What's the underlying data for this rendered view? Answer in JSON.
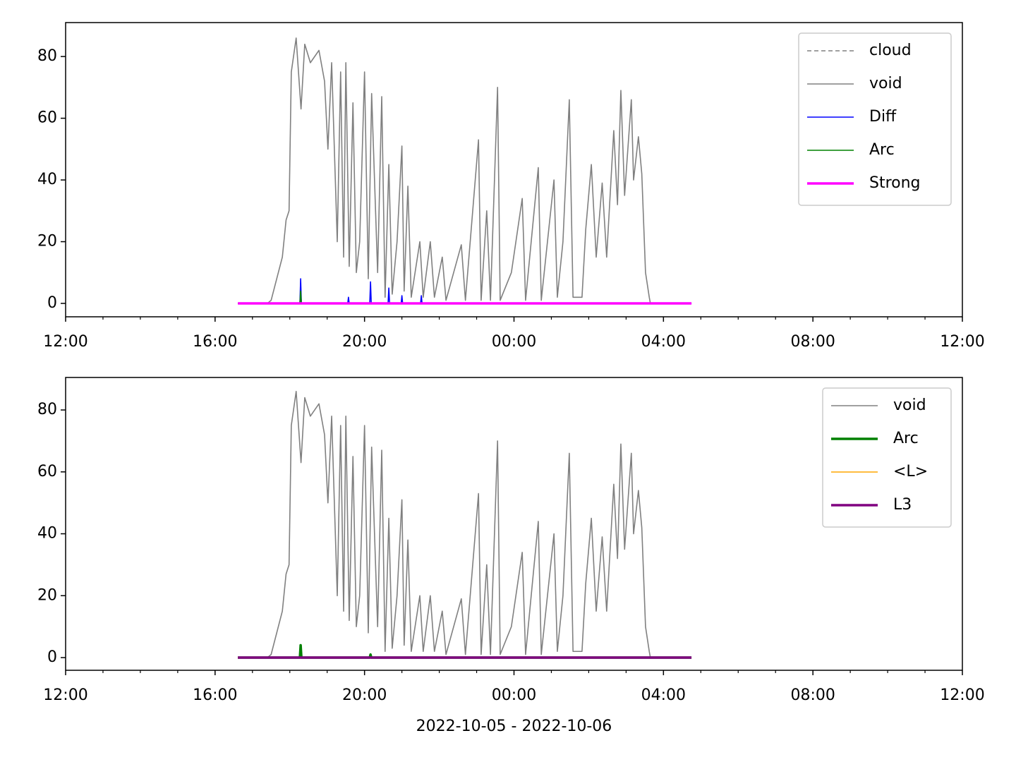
{
  "chart_data": [
    {
      "type": "line",
      "xlim": [
        0,
        24
      ],
      "xticks": [
        {
          "value": 0,
          "label": "12:00"
        },
        {
          "value": 4,
          "label": "16:00"
        },
        {
          "value": 8,
          "label": "20:00"
        },
        {
          "value": 12,
          "label": "00:00"
        },
        {
          "value": 16,
          "label": "04:00"
        },
        {
          "value": 20,
          "label": "08:00"
        },
        {
          "value": 24,
          "label": "12:00"
        }
      ],
      "xticks_minor": [
        1,
        2,
        3,
        5,
        6,
        7,
        9,
        10,
        11,
        13,
        14,
        15,
        17,
        18,
        19,
        21,
        22,
        23
      ],
      "ylim": [
        -4.34,
        91
      ],
      "yticks": [
        0,
        20,
        40,
        60,
        80
      ],
      "legend": "upper right",
      "series": [
        {
          "name": "cloud",
          "color": "#808080",
          "linestyle": "dashed",
          "weight": "thin",
          "x": [],
          "values": []
        },
        {
          "name": "void",
          "color": "#808080",
          "linestyle": "solid",
          "weight": "thin",
          "x": [
            4.61,
            5.4,
            5.5,
            5.8,
            5.9,
            5.98,
            6.04,
            6.17,
            6.3,
            6.4,
            6.55,
            6.78,
            6.93,
            7.02,
            7.12,
            7.27,
            7.36,
            7.44,
            7.5,
            7.59,
            7.69,
            7.78,
            7.87,
            8.0,
            8.1,
            8.19,
            8.35,
            8.46,
            8.55,
            8.65,
            8.74,
            8.87,
            9.0,
            9.06,
            9.16,
            9.25,
            9.48,
            9.57,
            9.76,
            9.87,
            10.08,
            10.18,
            10.59,
            10.7,
            11.05,
            11.12,
            11.27,
            11.37,
            11.56,
            11.63,
            11.93,
            12.22,
            12.31,
            12.65,
            12.73,
            13.07,
            13.16,
            13.31,
            13.48,
            13.58,
            13.82,
            13.92,
            14.07,
            14.2,
            14.36,
            14.48,
            14.67,
            14.77,
            14.86,
            14.96,
            15.14,
            15.2,
            15.33,
            15.42,
            15.52,
            15.62,
            15.65
          ],
          "values": [
            0,
            0,
            1,
            15,
            27,
            30,
            75,
            86,
            63,
            84,
            78,
            82,
            72,
            50,
            78,
            20,
            75,
            15,
            78,
            12,
            65,
            10,
            20,
            75,
            8,
            68,
            10,
            67,
            2,
            45,
            3,
            20,
            51,
            4,
            38,
            2,
            20,
            2,
            20,
            2,
            15,
            1,
            19,
            1,
            53,
            1,
            30,
            1,
            70,
            1,
            10,
            34,
            1,
            44,
            1,
            40,
            2,
            20,
            66,
            2,
            2,
            24,
            45,
            15,
            39,
            15,
            56,
            32,
            69,
            35,
            66,
            40,
            54,
            42,
            10,
            2,
            0
          ]
        },
        {
          "name": "Diff",
          "color": "#0000ff",
          "linestyle": "solid",
          "weight": "thin",
          "x": [
            4.61,
            6.27,
            6.29,
            6.31,
            7.55,
            7.57,
            7.59,
            8.14,
            8.16,
            8.18,
            8.63,
            8.65,
            8.67,
            8.98,
            9.0,
            9.02,
            9.5,
            9.52,
            9.54,
            16.75
          ],
          "values": [
            0,
            0,
            8,
            0,
            0,
            2,
            0,
            0,
            7,
            0,
            0,
            5,
            0,
            0,
            2.5,
            0,
            0,
            2.5,
            0,
            0
          ]
        },
        {
          "name": "Arc",
          "color": "#008000",
          "linestyle": "solid",
          "weight": "thin",
          "x": [
            4.61,
            6.27,
            6.29,
            6.31,
            16.75
          ],
          "values": [
            0,
            0,
            4,
            0,
            0
          ]
        },
        {
          "name": "Strong",
          "color": "#ff00ff",
          "linestyle": "solid",
          "weight": "thick",
          "x": [
            4.61,
            16.75
          ],
          "values": [
            0,
            0
          ]
        }
      ]
    },
    {
      "type": "line",
      "xlabel": "2022-10-05 - 2022-10-06",
      "xlim": [
        0,
        24
      ],
      "xticks": [
        {
          "value": 0,
          "label": "12:00"
        },
        {
          "value": 4,
          "label": "16:00"
        },
        {
          "value": 8,
          "label": "20:00"
        },
        {
          "value": 12,
          "label": "00:00"
        },
        {
          "value": 16,
          "label": "04:00"
        },
        {
          "value": 20,
          "label": "08:00"
        },
        {
          "value": 24,
          "label": "12:00"
        }
      ],
      "xticks_minor": [
        1,
        2,
        3,
        5,
        6,
        7,
        9,
        10,
        11,
        13,
        14,
        15,
        17,
        18,
        19,
        21,
        22,
        23
      ],
      "ylim": [
        -4.1,
        90.5
      ],
      "yticks": [
        0,
        20,
        40,
        60,
        80
      ],
      "legend": "upper right",
      "series": [
        {
          "name": "void",
          "color": "#808080",
          "linestyle": "solid",
          "weight": "thin",
          "x": [
            4.61,
            5.4,
            5.5,
            5.8,
            5.9,
            5.98,
            6.04,
            6.17,
            6.3,
            6.4,
            6.55,
            6.78,
            6.93,
            7.02,
            7.12,
            7.27,
            7.36,
            7.44,
            7.5,
            7.59,
            7.69,
            7.78,
            7.87,
            8.0,
            8.1,
            8.19,
            8.35,
            8.46,
            8.55,
            8.65,
            8.74,
            8.87,
            9.0,
            9.06,
            9.16,
            9.25,
            9.48,
            9.57,
            9.76,
            9.87,
            10.08,
            10.18,
            10.59,
            10.7,
            11.05,
            11.12,
            11.27,
            11.37,
            11.56,
            11.63,
            11.93,
            12.22,
            12.31,
            12.65,
            12.73,
            13.07,
            13.16,
            13.31,
            13.48,
            13.58,
            13.82,
            13.92,
            14.07,
            14.2,
            14.36,
            14.48,
            14.67,
            14.77,
            14.86,
            14.96,
            15.14,
            15.2,
            15.33,
            15.42,
            15.52,
            15.62,
            15.65
          ],
          "values": [
            0,
            0,
            1,
            15,
            27,
            30,
            75,
            86,
            63,
            84,
            78,
            82,
            72,
            50,
            78,
            20,
            75,
            15,
            78,
            12,
            65,
            10,
            20,
            75,
            8,
            68,
            10,
            67,
            2,
            45,
            3,
            20,
            51,
            4,
            38,
            2,
            20,
            2,
            20,
            2,
            15,
            1,
            19,
            1,
            53,
            1,
            30,
            1,
            70,
            1,
            10,
            34,
            1,
            44,
            1,
            40,
            2,
            20,
            66,
            2,
            2,
            24,
            45,
            15,
            39,
            15,
            56,
            32,
            69,
            35,
            66,
            40,
            54,
            42,
            10,
            2,
            0
          ]
        },
        {
          "name": "Arc",
          "color": "#008000",
          "linestyle": "solid",
          "weight": "thick",
          "x": [
            4.61,
            6.27,
            6.29,
            6.31,
            8.14,
            8.16,
            8.18,
            16.75
          ],
          "values": [
            0,
            0,
            4,
            0,
            0,
            1,
            0,
            0
          ]
        },
        {
          "name": "<L>",
          "color": "#ffa500",
          "linestyle": "solid",
          "weight": "thin",
          "x": [
            4.61,
            16.75
          ],
          "values": [
            0,
            0
          ]
        },
        {
          "name": "L3",
          "color": "#800080",
          "linestyle": "solid",
          "weight": "thick",
          "x": [
            4.61,
            16.75
          ],
          "values": [
            0,
            0
          ]
        }
      ]
    }
  ]
}
